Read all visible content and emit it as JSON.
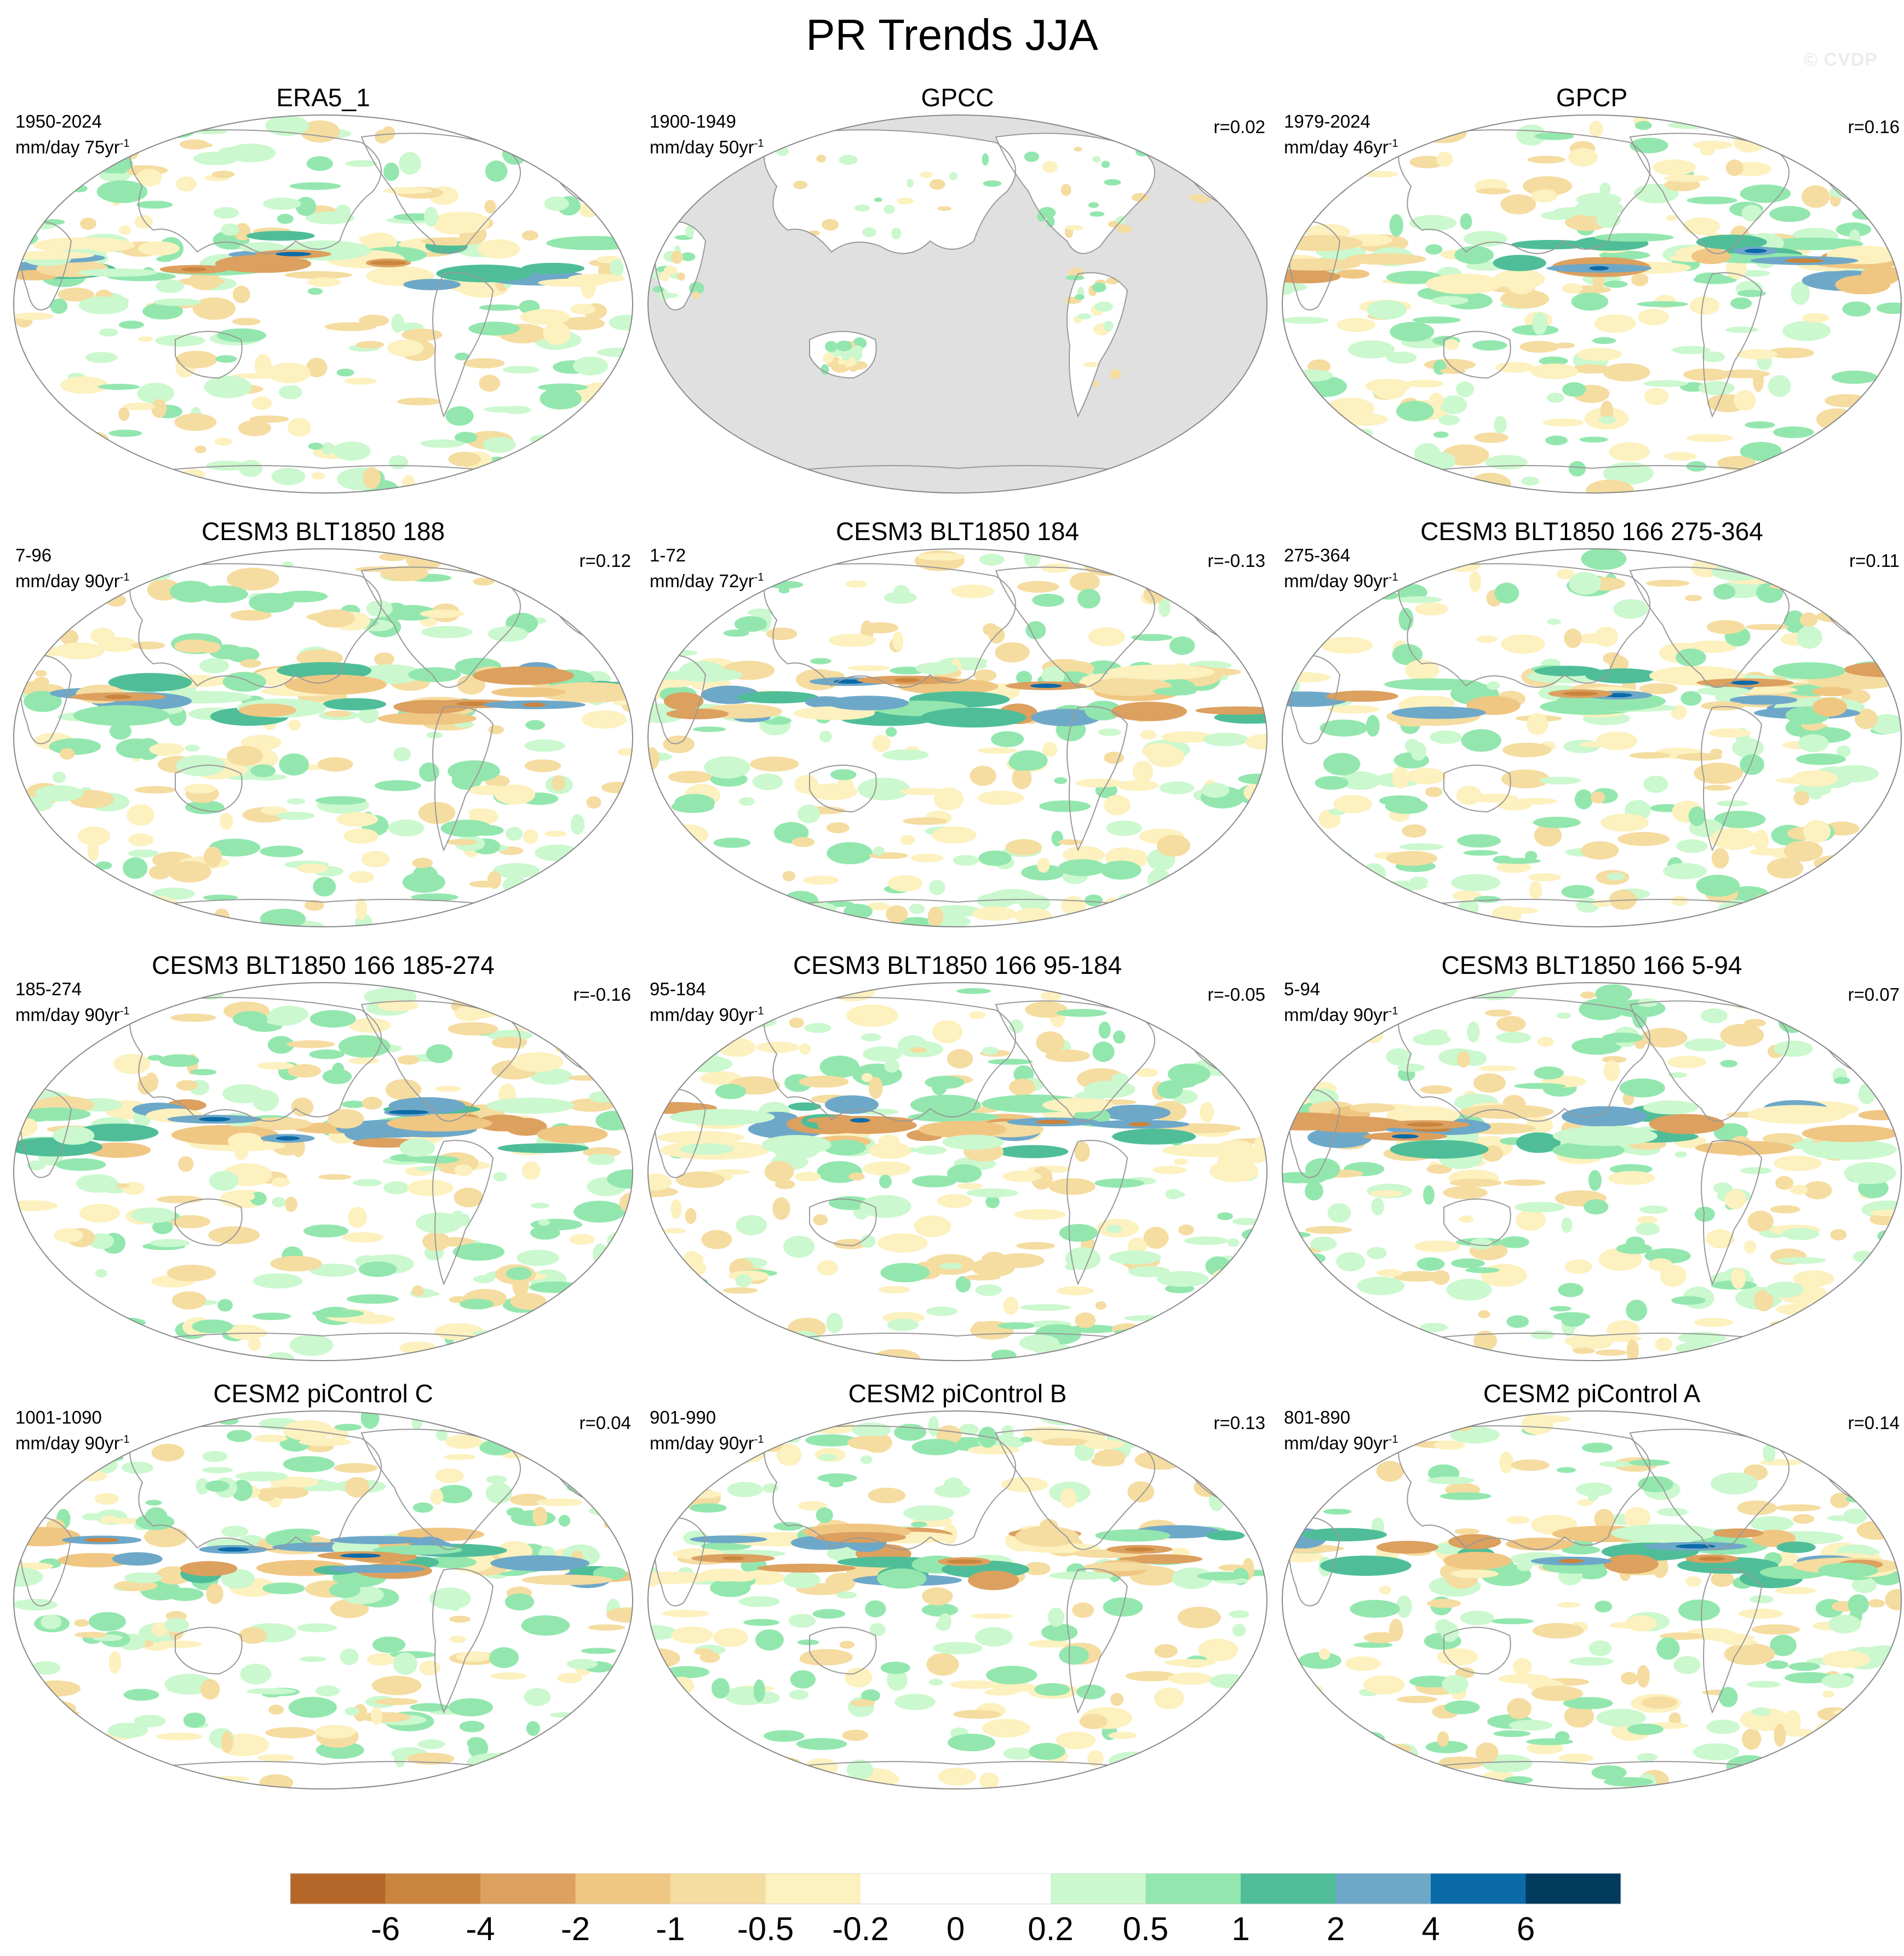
{
  "title": "PR Trends JJA",
  "watermark": "© CVDP",
  "land_color": "#e0e0e0",
  "outline_color": "#999999",
  "panels": [
    {
      "title": "ERA5_1",
      "period": "1950-2024",
      "units": "mm/day 75yr",
      "r": "",
      "masked": false
    },
    {
      "title": "GPCC",
      "period": "1900-1949",
      "units": "mm/day 50yr",
      "r": "r=0.02",
      "masked": true
    },
    {
      "title": "GPCP",
      "period": "1979-2024",
      "units": "mm/day 46yr",
      "r": "r=0.16",
      "masked": false
    },
    {
      "title": "CESM3 BLT1850 188",
      "period": "7-96",
      "units": "mm/day 90yr",
      "r": "r=0.12",
      "masked": false
    },
    {
      "title": "CESM3 BLT1850 184",
      "period": "1-72",
      "units": "mm/day 72yr",
      "r": "r=-0.13",
      "masked": false
    },
    {
      "title": "CESM3 BLT1850 166 275-364",
      "period": "275-364",
      "units": "mm/day 90yr",
      "r": "r=0.11",
      "masked": false
    },
    {
      "title": "CESM3 BLT1850 166 185-274",
      "period": "185-274",
      "units": "mm/day 90yr",
      "r": "r=-0.16",
      "masked": false
    },
    {
      "title": "CESM3 BLT1850 166 95-184",
      "period": "95-184",
      "units": "mm/day 90yr",
      "r": "r=-0.05",
      "masked": false
    },
    {
      "title": "CESM3 BLT1850 166 5-94",
      "period": "5-94",
      "units": "mm/day 90yr",
      "r": "r=0.07",
      "masked": false
    },
    {
      "title": "CESM2 piControl C",
      "period": "1001-1090",
      "units": "mm/day 90yr",
      "r": "r=0.04",
      "masked": false
    },
    {
      "title": "CESM2 piControl B",
      "period": "901-990",
      "units": "mm/day 90yr",
      "r": "r=0.13",
      "masked": false
    },
    {
      "title": "CESM2 piControl A",
      "period": "801-890",
      "units": "mm/day 90yr",
      "r": "r=0.14",
      "masked": false
    }
  ],
  "units_sup": "-1",
  "colorbar": {
    "colors": [
      "#b5672a",
      "#c9843d",
      "#dca05f",
      "#f0c683",
      "#f5dca0",
      "#fcf1bf",
      "#ffffff",
      "#ffffff",
      "#cbf8ce",
      "#93e7ae",
      "#4fbe98",
      "#6ea8c8",
      "#0b6aa8",
      "#003a5d"
    ],
    "tick_labels": [
      "-6",
      "-4",
      "-2",
      "-1",
      "-0.5",
      "-0.2",
      "0",
      "0.2",
      "0.5",
      "1",
      "2",
      "4",
      "6"
    ]
  }
}
